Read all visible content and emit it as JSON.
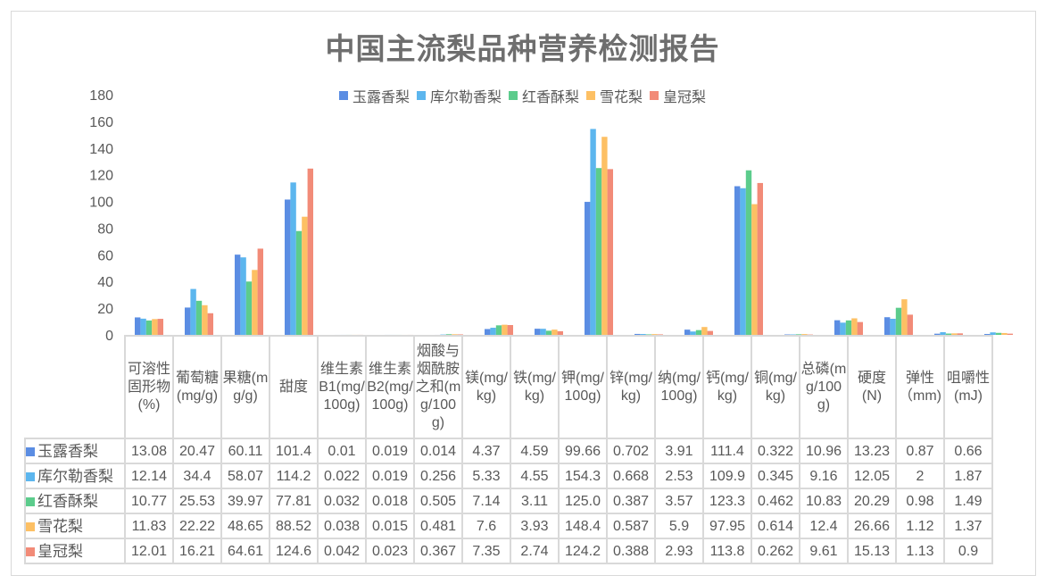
{
  "chart_data": {
    "type": "bar",
    "title": "中国主流梨品种营养检测报告",
    "ylim": [
      0,
      180
    ],
    "yticks": [
      "0",
      "20",
      "40",
      "60",
      "80",
      "100",
      "120",
      "140",
      "160",
      "180"
    ],
    "legend_position": "top",
    "categories": [
      "可溶性固形物(%)",
      "葡萄糖(mg/g)",
      "果糖(mg/g)",
      "甜度",
      "维生素B1(mg/100g)",
      "维生素B2(mg/100g)",
      "烟酸与烟酰胺之和(mg/100g)",
      "镁(mg/kg)",
      "铁(mg/kg)",
      "钾(mg/100g)",
      "锌(mg/kg)",
      "纳(mg/100g)",
      "钙(mg/kg)",
      "铜(mg/kg)",
      "总磷(mg/100g)",
      "硬度(N)",
      "弹性（mm)",
      "咀嚼性(mJ)"
    ],
    "series": [
      {
        "name": "玉露香梨",
        "color": "#5b8de3",
        "values": [
          13.08,
          20.47,
          60.11,
          101.4,
          0.01,
          0.019,
          0.014,
          4.37,
          4.59,
          99.66,
          0.702,
          3.91,
          111.4,
          0.322,
          10.96,
          13.23,
          0.87,
          0.66
        ],
        "labels": [
          "13.08",
          "20.47",
          "60.11",
          "101.4",
          "0.01",
          "0.019",
          "0.014",
          "4.37",
          "4.59",
          "99.66",
          "0.702",
          "3.91",
          "111.4",
          "0.322",
          "10.96",
          "13.23",
          "0.87",
          "0.66"
        ]
      },
      {
        "name": "库尔勒香梨",
        "color": "#5cb6ee",
        "values": [
          12.14,
          34.4,
          58.07,
          114.2,
          0.022,
          0.019,
          0.256,
          5.33,
          4.55,
          154.3,
          0.668,
          2.53,
          109.9,
          0.345,
          9.16,
          12.05,
          2,
          1.87
        ],
        "labels": [
          "12.14",
          "34.4",
          "58.07",
          "114.2",
          "0.022",
          "0.019",
          "0.256",
          "5.33",
          "4.55",
          "154.3",
          "0.668",
          "2.53",
          "109.9",
          "0.345",
          "9.16",
          "12.05",
          "2",
          "1.87"
        ]
      },
      {
        "name": "红香酥梨",
        "color": "#5ccc8c",
        "values": [
          10.77,
          25.53,
          39.97,
          77.81,
          0.032,
          0.018,
          0.505,
          7.14,
          3.11,
          125.0,
          0.387,
          3.57,
          123.3,
          0.462,
          10.83,
          20.29,
          0.98,
          1.49
        ],
        "labels": [
          "10.77",
          "25.53",
          "39.97",
          "77.81",
          "0.032",
          "0.018",
          "0.505",
          "7.14",
          "3.11",
          "125.0",
          "0.387",
          "3.57",
          "123.3",
          "0.462",
          "10.83",
          "20.29",
          "0.98",
          "1.49"
        ]
      },
      {
        "name": "雪花梨",
        "color": "#fdc064",
        "values": [
          11.83,
          22.22,
          48.65,
          88.52,
          0.038,
          0.015,
          0.481,
          7.6,
          3.93,
          148.4,
          0.587,
          5.9,
          97.95,
          0.614,
          12.4,
          26.66,
          1.12,
          1.37
        ],
        "labels": [
          "11.83",
          "22.22",
          "48.65",
          "88.52",
          "0.038",
          "0.015",
          "0.481",
          "7.6",
          "3.93",
          "148.4",
          "0.587",
          "5.9",
          "97.95",
          "0.614",
          "12.4",
          "26.66",
          "1.12",
          "1.37"
        ]
      },
      {
        "name": "皇冠梨",
        "color": "#f28b78",
        "values": [
          12.01,
          16.21,
          64.61,
          124.6,
          0.042,
          0.023,
          0.367,
          7.35,
          2.74,
          124.2,
          0.388,
          2.93,
          113.8,
          0.262,
          9.61,
          15.13,
          1.13,
          0.9
        ],
        "labels": [
          "12.01",
          "16.21",
          "64.61",
          "124.6",
          "0.042",
          "0.023",
          "0.367",
          "7.35",
          "2.74",
          "124.2",
          "0.388",
          "2.93",
          "113.8",
          "0.262",
          "9.61",
          "15.13",
          "1.13",
          "0.9"
        ]
      }
    ]
  }
}
